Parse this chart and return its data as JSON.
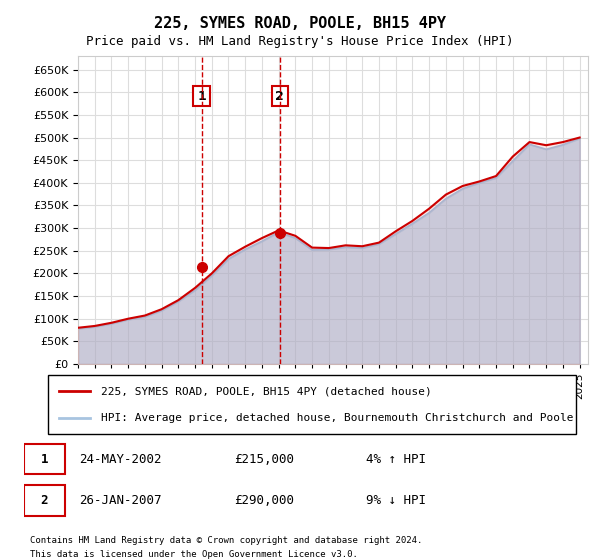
{
  "title": "225, SYMES ROAD, POOLE, BH15 4PY",
  "subtitle": "Price paid vs. HM Land Registry's House Price Index (HPI)",
  "ylabel_ticks": [
    0,
    50000,
    100000,
    150000,
    200000,
    250000,
    300000,
    350000,
    400000,
    450000,
    500000,
    550000,
    600000,
    650000
  ],
  "ylim": [
    0,
    680000
  ],
  "xlim_start": 1995.0,
  "xlim_end": 2025.5,
  "sale1_year": 2002.39,
  "sale1_price": 215000,
  "sale1_label": "1",
  "sale1_date": "24-MAY-2002",
  "sale1_pct": "4% ↑ HPI",
  "sale2_year": 2007.07,
  "sale2_price": 290000,
  "sale2_label": "2",
  "sale2_date": "26-JAN-2007",
  "sale2_pct": "9% ↓ HPI",
  "hpi_color": "#a8c4e0",
  "price_color": "#cc0000",
  "marker_box_color": "#cc0000",
  "grid_color": "#dddddd",
  "background_color": "#ffffff",
  "legend_line1": "225, SYMES ROAD, POOLE, BH15 4PY (detached house)",
  "legend_line2": "HPI: Average price, detached house, Bournemouth Christchurch and Poole",
  "footnote1": "Contains HM Land Registry data © Crown copyright and database right 2024.",
  "footnote2": "This data is licensed under the Open Government Licence v3.0.",
  "hpi_years": [
    1995,
    1996,
    1997,
    1998,
    1999,
    2000,
    2001,
    2002,
    2003,
    2004,
    2005,
    2006,
    2007,
    2008,
    2009,
    2010,
    2011,
    2012,
    2013,
    2014,
    2015,
    2016,
    2017,
    2018,
    2019,
    2020,
    2021,
    2022,
    2023,
    2024,
    2025
  ],
  "hpi_values": [
    78000,
    82000,
    89000,
    98000,
    104000,
    118000,
    138000,
    163000,
    195000,
    232000,
    253000,
    271000,
    291000,
    278000,
    252000,
    253000,
    258000,
    256000,
    265000,
    287000,
    310000,
    334000,
    365000,
    387000,
    400000,
    411000,
    448000,
    485000,
    474000,
    484000,
    498000
  ],
  "price_years": [
    1995,
    1996,
    1997,
    1998,
    1999,
    2000,
    2001,
    2002,
    2003,
    2004,
    2005,
    2006,
    2007,
    2008,
    2009,
    2010,
    2011,
    2012,
    2013,
    2014,
    2015,
    2016,
    2017,
    2018,
    2019,
    2020,
    2021,
    2022,
    2023,
    2024,
    2025
  ],
  "price_values": [
    80000,
    84000,
    91000,
    100000,
    107000,
    121000,
    141000,
    168000,
    200000,
    238000,
    259000,
    278000,
    295000,
    283000,
    257000,
    256000,
    262000,
    260000,
    268000,
    293000,
    316000,
    343000,
    374000,
    393000,
    403000,
    415000,
    458000,
    490000,
    483000,
    490000,
    500000
  ]
}
